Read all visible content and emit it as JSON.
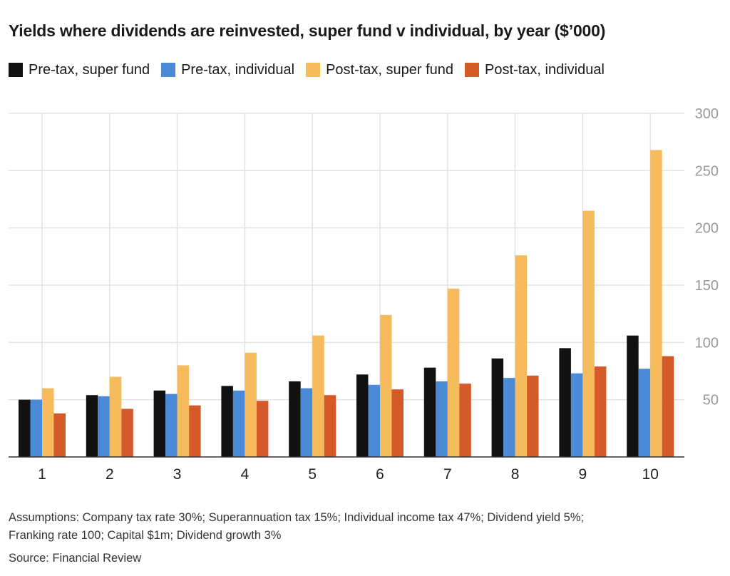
{
  "title": "Yields where dividends are reinvested, super fund v individual, by year ($’000)",
  "notes": {
    "line1": "Assumptions: Company tax rate 30%; Superannuation tax 15%; Individual income tax 47%; Dividend yield 5%;",
    "line2": "Franking rate 100; Capital $1m; Dividend growth 3%"
  },
  "source": "Source: Financial Review",
  "chart_data": {
    "type": "bar",
    "title": "Yields where dividends are reinvested, super fund v individual, by year ($’000)",
    "xlabel": "",
    "ylabel": "",
    "categories": [
      "1",
      "2",
      "3",
      "4",
      "5",
      "6",
      "7",
      "8",
      "9",
      "10"
    ],
    "series": [
      {
        "name": "Pre-tax, super fund",
        "color": "#111111",
        "values": [
          50,
          54,
          58,
          62,
          66,
          72,
          78,
          86,
          95,
          106
        ]
      },
      {
        "name": "Pre-tax, individual",
        "color": "#4a8ad6",
        "values": [
          50,
          53,
          55,
          58,
          60,
          63,
          66,
          69,
          73,
          77
        ]
      },
      {
        "name": "Post-tax, super fund",
        "color": "#f5bb5c",
        "values": [
          60,
          70,
          80,
          91,
          106,
          124,
          147,
          176,
          215,
          268
        ]
      },
      {
        "name": "Post-tax, individual",
        "color": "#d45a2a",
        "values": [
          38,
          42,
          45,
          49,
          54,
          59,
          64,
          71,
          79,
          88
        ]
      }
    ],
    "ylim": [
      0,
      300
    ],
    "yticks": [
      50,
      100,
      150,
      200,
      250,
      300
    ],
    "y_axis_position": "right",
    "grid": true,
    "legend_position": "top-left"
  }
}
